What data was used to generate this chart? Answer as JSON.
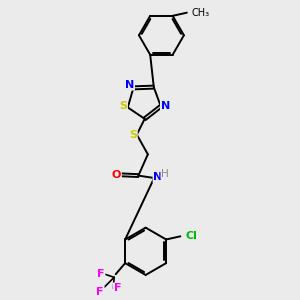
{
  "background_color": "#ebebeb",
  "atom_colors": {
    "S": "#cccc00",
    "N": "#0000ff",
    "O": "#ff0000",
    "Cl": "#00bb00",
    "F": "#ff00ff",
    "H": "#888888",
    "C": "#000000"
  },
  "figsize": [
    3.0,
    3.0
  ],
  "dpi": 100
}
